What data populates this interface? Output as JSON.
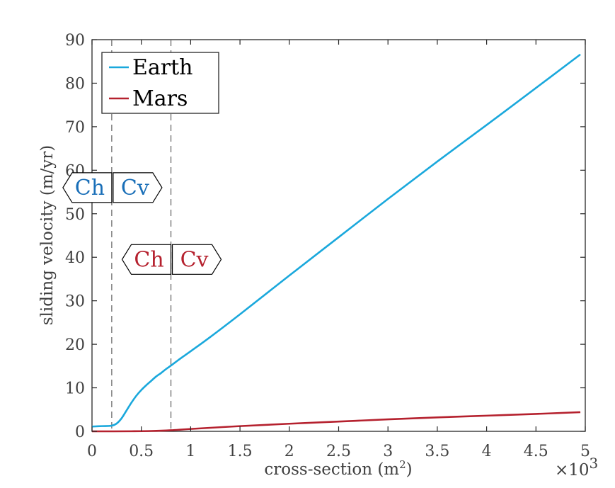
{
  "chart_data": {
    "type": "line",
    "title": "",
    "xlabel": "cross-section (m",
    "xlabel_sup": "2",
    "xlabel_close": ")",
    "ylabel": "sliding velocity (m/yr)",
    "x_multiplier_base": "×10",
    "x_multiplier_exp": "3",
    "xlim": [
      0,
      5
    ],
    "ylim": [
      0,
      90
    ],
    "xticks": [
      0,
      0.5,
      1,
      1.5,
      2,
      2.5,
      3,
      3.5,
      4,
      4.5,
      5
    ],
    "xtick_labels": [
      "0",
      "0.5",
      "1",
      "1.5",
      "2",
      "2.5",
      "3",
      "3.5",
      "4",
      "4.5",
      "5"
    ],
    "yticks": [
      0,
      10,
      20,
      30,
      40,
      50,
      60,
      70,
      80,
      90
    ],
    "ytick_labels": [
      "0",
      "10",
      "20",
      "30",
      "40",
      "50",
      "60",
      "70",
      "80",
      "90"
    ],
    "grid": false,
    "legend_position": "top-left",
    "series": [
      {
        "name": "Earth",
        "color": "#1aa8dc",
        "x": [
          0,
          0.1,
          0.2,
          0.25,
          0.3,
          0.35,
          0.4,
          0.45,
          0.5,
          0.55,
          0.6,
          0.65,
          0.7,
          0.75,
          0.8,
          0.9,
          1.0,
          1.2,
          1.5,
          2.0,
          2.5,
          3.0,
          3.5,
          4.0,
          4.5,
          4.95
        ],
        "y": [
          1.1,
          1.2,
          1.3,
          1.8,
          3.0,
          4.8,
          6.6,
          8.2,
          9.5,
          10.6,
          11.6,
          12.6,
          13.4,
          14.3,
          15.1,
          16.8,
          18.4,
          21.7,
          26.9,
          35.8,
          44.6,
          53.4,
          62.0,
          70.4,
          78.9,
          86.6
        ]
      },
      {
        "name": "Mars",
        "color": "#b5212e",
        "x": [
          0,
          0.2,
          0.4,
          0.6,
          0.8,
          1.0,
          1.5,
          2.0,
          2.5,
          3.0,
          3.5,
          4.0,
          4.5,
          4.95
        ],
        "y": [
          0,
          0,
          0.02,
          0.08,
          0.25,
          0.55,
          1.2,
          1.75,
          2.25,
          2.75,
          3.2,
          3.6,
          4.0,
          4.4
        ]
      }
    ],
    "vertical_lines": [
      0.2,
      0.8
    ],
    "regime_labels": [
      {
        "left": "Ch",
        "right": "Cv",
        "color": "#1a6fb8",
        "x_boundary": 0.2,
        "y": 56
      },
      {
        "left": "Ch",
        "right": "Cv",
        "color": "#b5212e",
        "x_boundary": 0.8,
        "y": 39.5
      }
    ]
  }
}
